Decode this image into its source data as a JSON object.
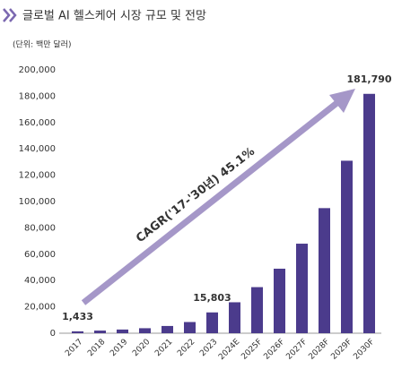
{
  "chart_data": {
    "type": "bar",
    "title": "글로벌 AI 헬스케어 시장 규모 및 전망",
    "subtitle": "(단위: 백만 달러)",
    "annotation": "CAGR('17-'30년) 45.1%",
    "categories": [
      "2017",
      "2018",
      "2019",
      "2020",
      "2021",
      "2022",
      "2023",
      "2024E",
      "2025F",
      "2026F",
      "2027F",
      "2028F",
      "2029F",
      "2030F"
    ],
    "values": [
      1433,
      2000,
      2800,
      3800,
      5500,
      8500,
      15803,
      23500,
      35000,
      49000,
      68000,
      95000,
      131000,
      181790
    ],
    "value_labels": [
      "1,433",
      null,
      null,
      null,
      null,
      null,
      "15,803",
      null,
      null,
      null,
      null,
      null,
      null,
      "181,790"
    ],
    "color": "#4b3b8c",
    "ylim": [
      0,
      200000
    ],
    "yticks": [
      0,
      {
        "value": 20000,
        "label": "20,000"
      },
      {
        "value": 40000,
        "label": "40,000"
      },
      {
        "value": 60000,
        "label": "60,000"
      },
      {
        "value": 80000,
        "label": "80,000"
      },
      {
        "value": 100000,
        "label": "100,000"
      },
      {
        "value": 120000,
        "label": "120,000"
      },
      {
        "value": 140000,
        "label": "140,000"
      },
      {
        "value": 160000,
        "label": "160,000"
      },
      {
        "value": 180000,
        "label": "180,000"
      },
      {
        "value": 200000,
        "label": "200,000"
      }
    ],
    "grid": false
  }
}
